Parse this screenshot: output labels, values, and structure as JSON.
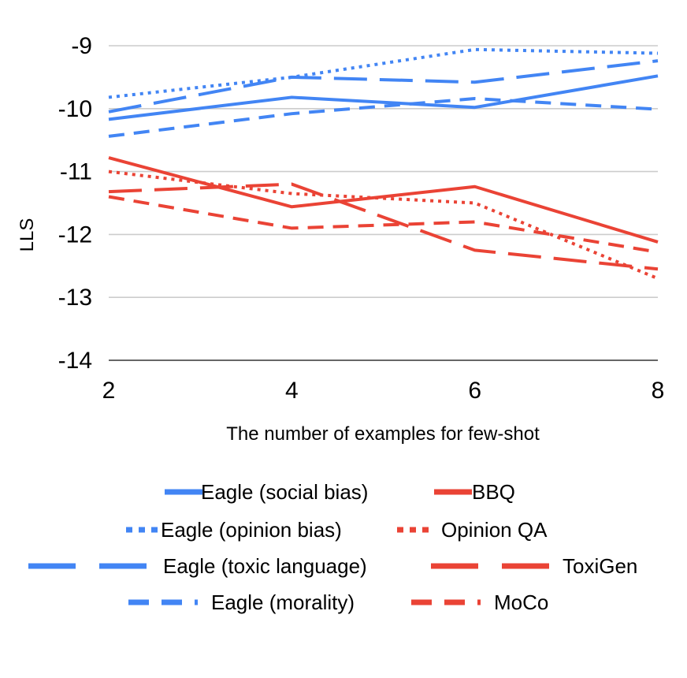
{
  "chart_data": {
    "type": "line",
    "title": "",
    "xlabel": "The number of examples for few-shot",
    "ylabel": "LLS",
    "x": [
      2,
      4,
      6,
      8
    ],
    "x_ticks": [
      "2",
      "4",
      "6",
      "8"
    ],
    "y_ticks": [
      "-9",
      "-10",
      "-11",
      "-12",
      "-13",
      "-14"
    ],
    "ylim": [
      -14,
      -9
    ],
    "grid": "horizontal",
    "legend_position": "bottom",
    "series": [
      {
        "name": "Eagle (social bias)",
        "values": [
          -10.17,
          -9.82,
          -9.98,
          -9.48
        ],
        "color": "#4285F4",
        "dash": "solid"
      },
      {
        "name": "BBQ",
        "values": [
          -10.78,
          -11.56,
          -11.24,
          -12.12
        ],
        "color": "#EA4335",
        "dash": "solid"
      },
      {
        "name": "Eagle (opinion bias)",
        "values": [
          -9.82,
          -9.5,
          -9.06,
          -9.12
        ],
        "color": "#4285F4",
        "dash": "dot"
      },
      {
        "name": "Opinion QA",
        "values": [
          -11.0,
          -11.35,
          -11.5,
          -12.7
        ],
        "color": "#EA4335",
        "dash": "dot"
      },
      {
        "name": "Eagle (toxic language)",
        "values": [
          -10.05,
          -9.5,
          -9.58,
          -9.24
        ],
        "color": "#4285F4",
        "dash": "longdash"
      },
      {
        "name": "ToxiGen",
        "values": [
          -11.32,
          -11.2,
          -12.25,
          -12.55
        ],
        "color": "#EA4335",
        "dash": "longdash"
      },
      {
        "name": "Eagle (morality)",
        "values": [
          -10.44,
          -10.08,
          -9.84,
          -10.01
        ],
        "color": "#4285F4",
        "dash": "dash"
      },
      {
        "name": "MoCo",
        "values": [
          -11.4,
          -11.9,
          -11.8,
          -12.28
        ],
        "color": "#EA4335",
        "dash": "dash"
      }
    ]
  }
}
